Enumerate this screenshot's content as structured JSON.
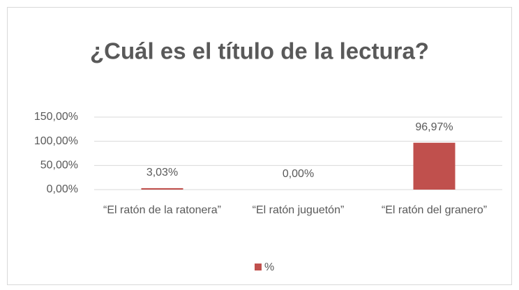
{
  "chart_data": {
    "type": "bar",
    "title": "¿Cuál es el título de la lectura?",
    "categories": [
      "“El ratón de la ratonera”",
      "“El ratón juguetón”",
      "“El ratón del granero”"
    ],
    "series": [
      {
        "name": "%",
        "color": "#c0504d",
        "values": [
          3.03,
          0,
          96.97
        ],
        "value_labels": [
          "3,03%",
          "0,00%",
          "96,97%"
        ]
      }
    ],
    "ylim": [
      0,
      150
    ],
    "yticks": [
      {
        "value": 0,
        "label": "0,00%"
      },
      {
        "value": 50,
        "label": "50,00%"
      },
      {
        "value": 100,
        "label": "100,00%"
      },
      {
        "value": 150,
        "label": "150,00%"
      }
    ],
    "grid": true,
    "legend": "bottom"
  }
}
